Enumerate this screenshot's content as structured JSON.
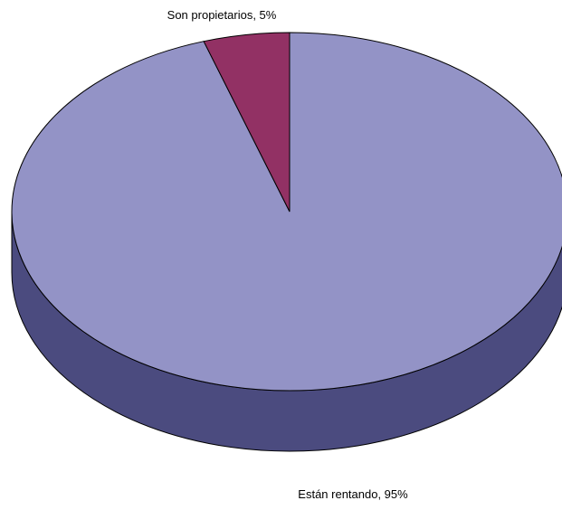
{
  "chart_data": {
    "type": "pie",
    "style": "3d",
    "title": "",
    "slices": [
      {
        "label": "Están rentando",
        "value": 95,
        "display": "Están rentando, 95%",
        "color": "#9393c6",
        "side_color": "#4b4b7f"
      },
      {
        "label": "Son propietarios",
        "value": 5,
        "display": "Son propietarios, 5%",
        "color": "#923164",
        "side_color": "#5a1e3e"
      }
    ],
    "legend": "none",
    "outline_color": "#000000"
  }
}
